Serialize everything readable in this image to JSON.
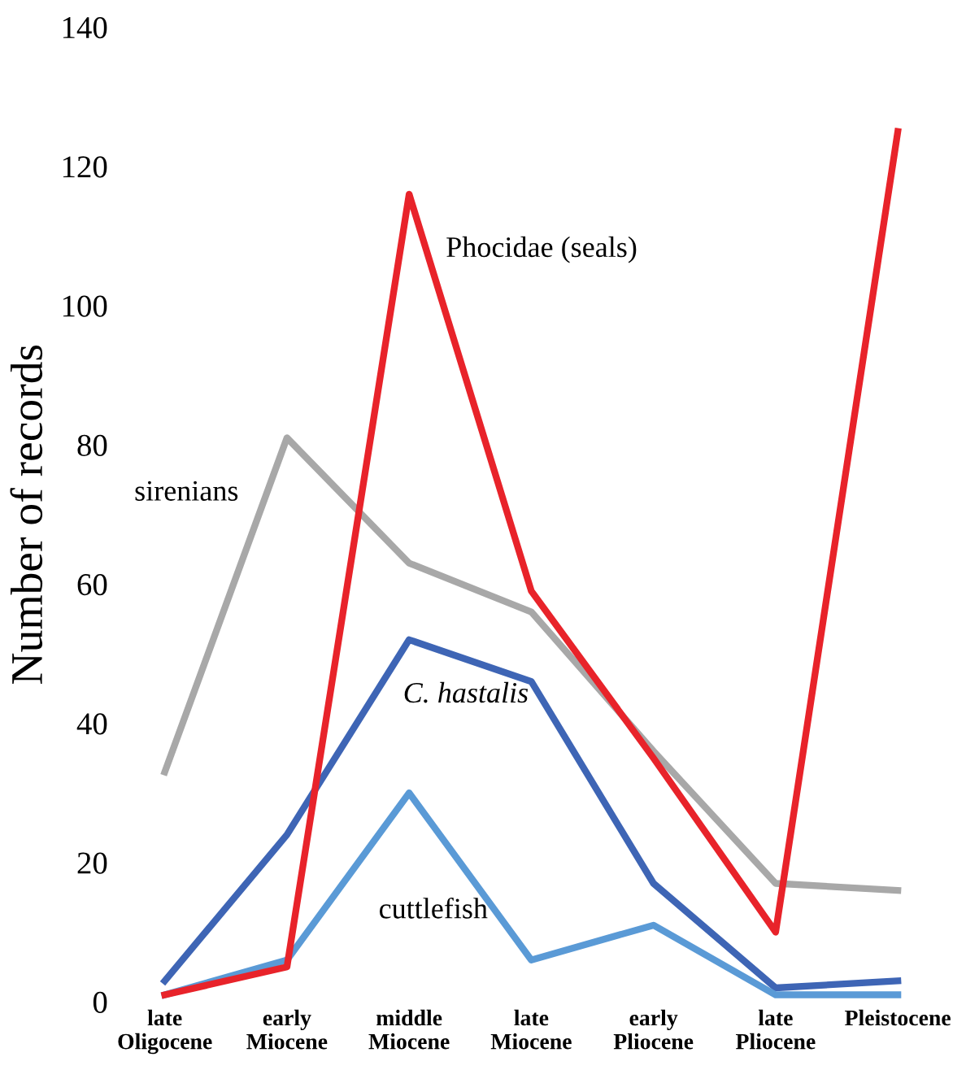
{
  "chart_data": {
    "type": "line",
    "ylabel": "Number of records",
    "categories": [
      "late\nOligocene",
      "early\nMiocene",
      "middle\nMiocene",
      "late\nMiocene",
      "early\nPliocene",
      "late\nPliocene",
      "Pleistocene"
    ],
    "series": [
      {
        "name": "sirenians",
        "color": "#a8a8a8",
        "values": [
          33,
          81,
          63,
          56,
          36,
          17,
          16
        ]
      },
      {
        "name": "C. hastalis",
        "color": "#3e65b5",
        "values": [
          3,
          24,
          52,
          46,
          17,
          2,
          3
        ]
      },
      {
        "name": "cuttlefish",
        "color": "#5a9ad6",
        "values": [
          1,
          6,
          30,
          6,
          11,
          1,
          1
        ]
      },
      {
        "name": "Phocidae (seals)",
        "color": "#e8232a",
        "values": [
          1,
          5,
          116,
          59,
          35,
          10,
          125
        ]
      }
    ],
    "ylim": [
      0,
      140
    ],
    "yticks": [
      0,
      20,
      40,
      60,
      80,
      100,
      120,
      140
    ],
    "grid": false,
    "legend": false,
    "marker": "none",
    "line_style": "solid"
  }
}
